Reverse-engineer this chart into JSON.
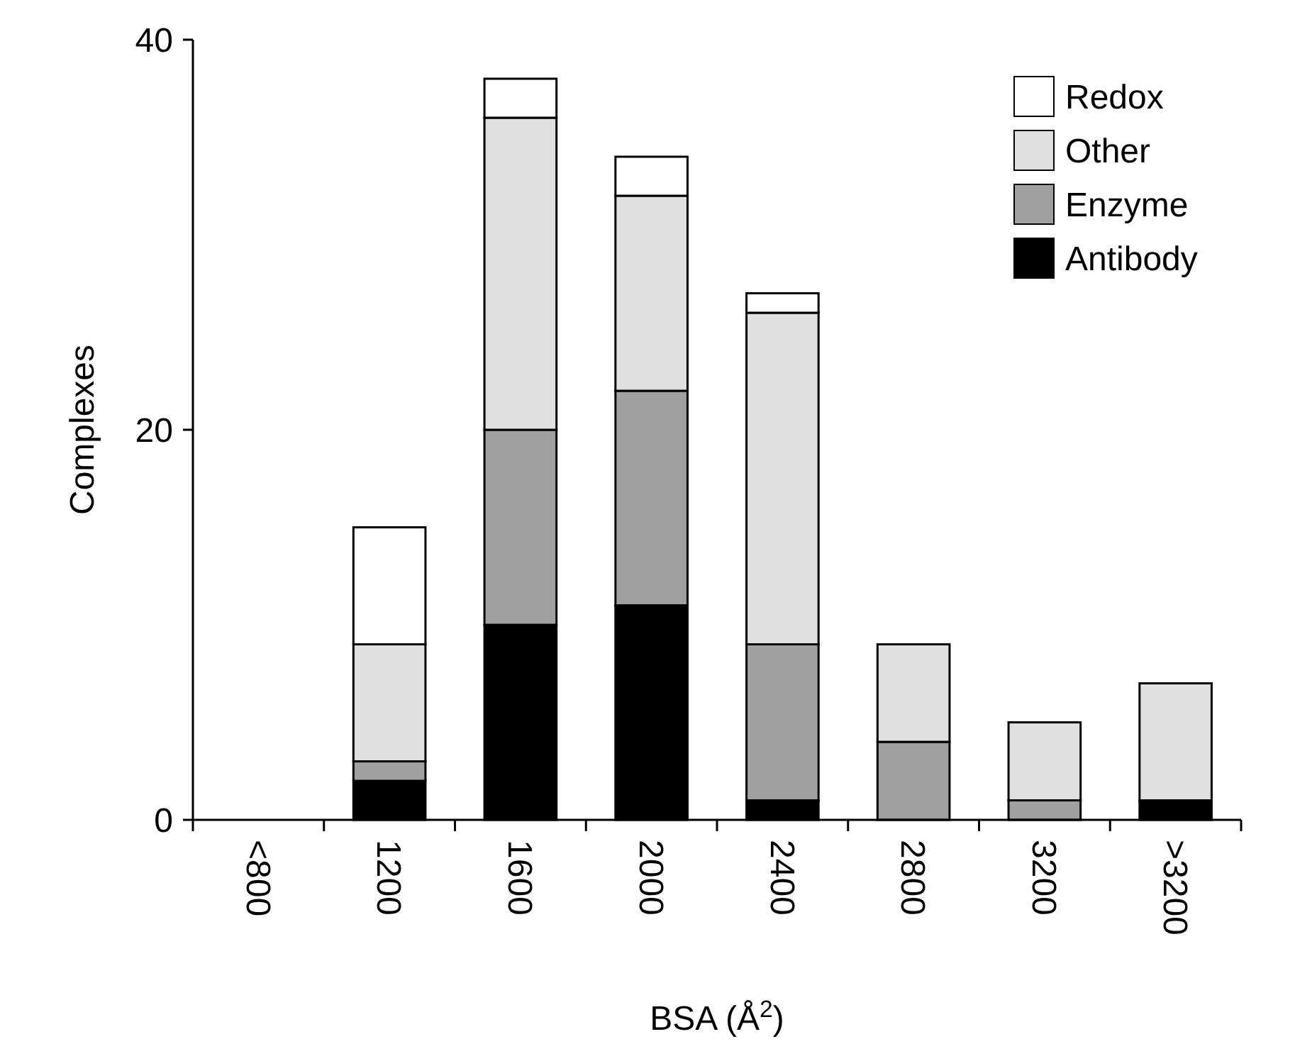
{
  "chart_data": {
    "type": "bar",
    "stacked": true,
    "xlabel": "BSA (Å$^{2}$)",
    "ylabel": "Complexes",
    "categories": [
      "<800",
      "1200",
      "1600",
      "2000",
      "2400",
      "2800",
      "3200",
      ">3200"
    ],
    "series": [
      {
        "name": "Antibody",
        "color": "#000000",
        "values": [
          0,
          2,
          10,
          11,
          1,
          0,
          0,
          1
        ]
      },
      {
        "name": "Enzyme",
        "color": "#a0a0a0",
        "values": [
          0,
          1,
          10,
          11,
          8,
          4,
          1,
          0
        ]
      },
      {
        "name": "Other",
        "color": "#e0e0e0",
        "values": [
          0,
          6,
          16,
          10,
          17,
          5,
          4,
          6
        ]
      },
      {
        "name": "Redox",
        "color": "#ffffff",
        "values": [
          0,
          6,
          2,
          2,
          1,
          0,
          0,
          0
        ]
      }
    ],
    "ylim": [
      0,
      40
    ],
    "yticks": [
      0,
      20,
      40
    ],
    "legend": "top right"
  }
}
